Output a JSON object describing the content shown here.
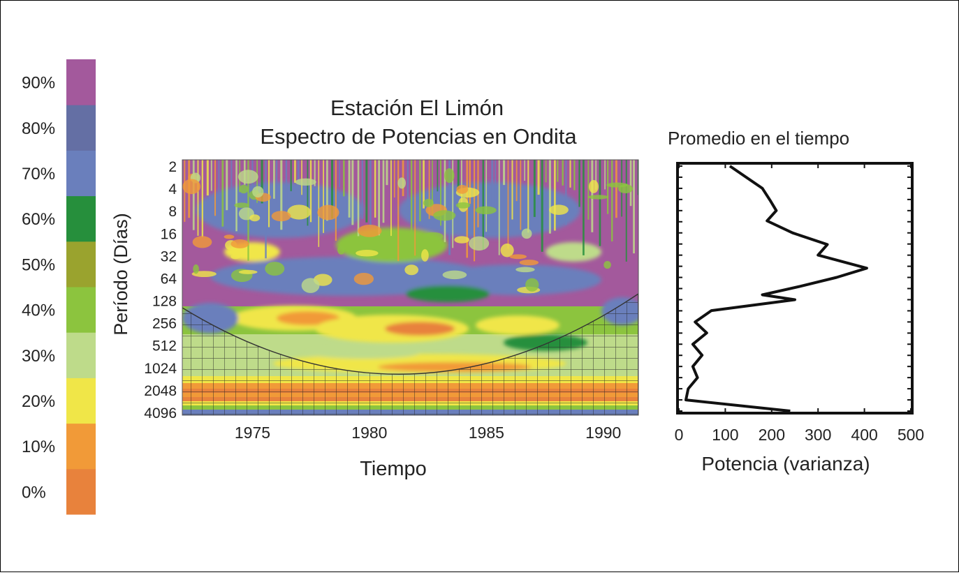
{
  "chart_data": [
    {
      "type": "heatmap",
      "title": "Estación El Limón",
      "subtitle": "Espectro de Potencias en Ondita",
      "xlabel": "Tiempo",
      "ylabel": "Período (Días)",
      "x_ticks": [
        1975,
        1980,
        1985,
        1990
      ],
      "xlim": [
        1972,
        1991.5
      ],
      "y_ticks": [
        2,
        4,
        8,
        16,
        32,
        64,
        128,
        256,
        512,
        1024,
        2048,
        4096
      ],
      "y_scale": "log2",
      "colorbar": {
        "levels": [
          "0%",
          "10%",
          "20%",
          "30%",
          "40%",
          "50%",
          "60%",
          "70%",
          "80%",
          "90%"
        ],
        "colors": [
          "#e8823c",
          "#f19a38",
          "#f0e648",
          "#bedb8a",
          "#8cc43e",
          "#9aa32e",
          "#268f3c",
          "#6a7fbc",
          "#646fa4",
          "#a3599c"
        ]
      },
      "cone_of_influence": "hatched"
    },
    {
      "type": "line",
      "title": "Promedio en el tiempo",
      "xlabel": "Potencia (varianza)",
      "ylabel": "",
      "xlim": [
        0,
        500
      ],
      "x_ticks": [
        0,
        100,
        200,
        300,
        400,
        500
      ],
      "y_scale": "log2",
      "ylim": [
        2,
        4096
      ],
      "series": [
        {
          "color": "#111111",
          "points": [
            [
              110,
              2
            ],
            [
              180,
              4
            ],
            [
              198,
              6
            ],
            [
              210,
              8
            ],
            [
              190,
              11
            ],
            [
              245,
              16
            ],
            [
              320,
              23
            ],
            [
              300,
              32
            ],
            [
              405,
              48
            ],
            [
              340,
              64
            ],
            [
              260,
              85
            ],
            [
              180,
              110
            ],
            [
              250,
              128
            ],
            [
              70,
              180
            ],
            [
              35,
              256
            ],
            [
              60,
              360
            ],
            [
              30,
              512
            ],
            [
              50,
              720
            ],
            [
              30,
              1024
            ],
            [
              40,
              1450
            ],
            [
              20,
              2048
            ],
            [
              15,
              2900
            ],
            [
              240,
              4096
            ]
          ]
        }
      ]
    }
  ]
}
